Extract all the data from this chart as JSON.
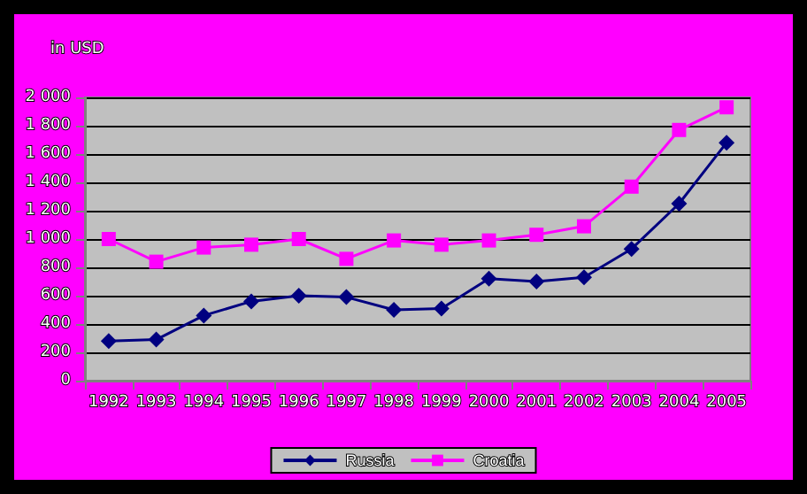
{
  "chart_data": {
    "type": "line",
    "ylabel": "in USD",
    "categories": [
      "1992",
      "1993",
      "1994",
      "1995",
      "1996",
      "1997",
      "1998",
      "1999",
      "2000",
      "2001",
      "2002",
      "2003",
      "2004",
      "2005"
    ],
    "series": [
      {
        "name": "Russia",
        "color": "#000080",
        "marker": "diamond",
        "values": [
          280,
          290,
          460,
          560,
          600,
          590,
          500,
          510,
          720,
          700,
          730,
          930,
          1250,
          1680
        ]
      },
      {
        "name": "Croatia",
        "color": "#ff00ff",
        "marker": "square",
        "values": [
          1000,
          840,
          940,
          960,
          1000,
          860,
          990,
          960,
          990,
          1030,
          1090,
          1370,
          1770,
          1930
        ]
      }
    ],
    "ylim": [
      0,
      2000
    ],
    "yticks": [
      0,
      {
        "value": 200,
        "label": "200"
      },
      {
        "value": 400,
        "label": "400"
      },
      {
        "value": 600,
        "label": "600"
      },
      {
        "value": 800,
        "label": "800"
      },
      {
        "value": 1000,
        "label": "1 000"
      },
      {
        "value": 1200,
        "label": "1 200"
      },
      {
        "value": 1400,
        "label": "1 400"
      },
      {
        "value": 1600,
        "label": "1 600"
      },
      {
        "value": 1800,
        "label": "1 800"
      },
      {
        "value": 2000,
        "label": "2 000"
      }
    ],
    "grid": "y",
    "legend": "bottom"
  }
}
